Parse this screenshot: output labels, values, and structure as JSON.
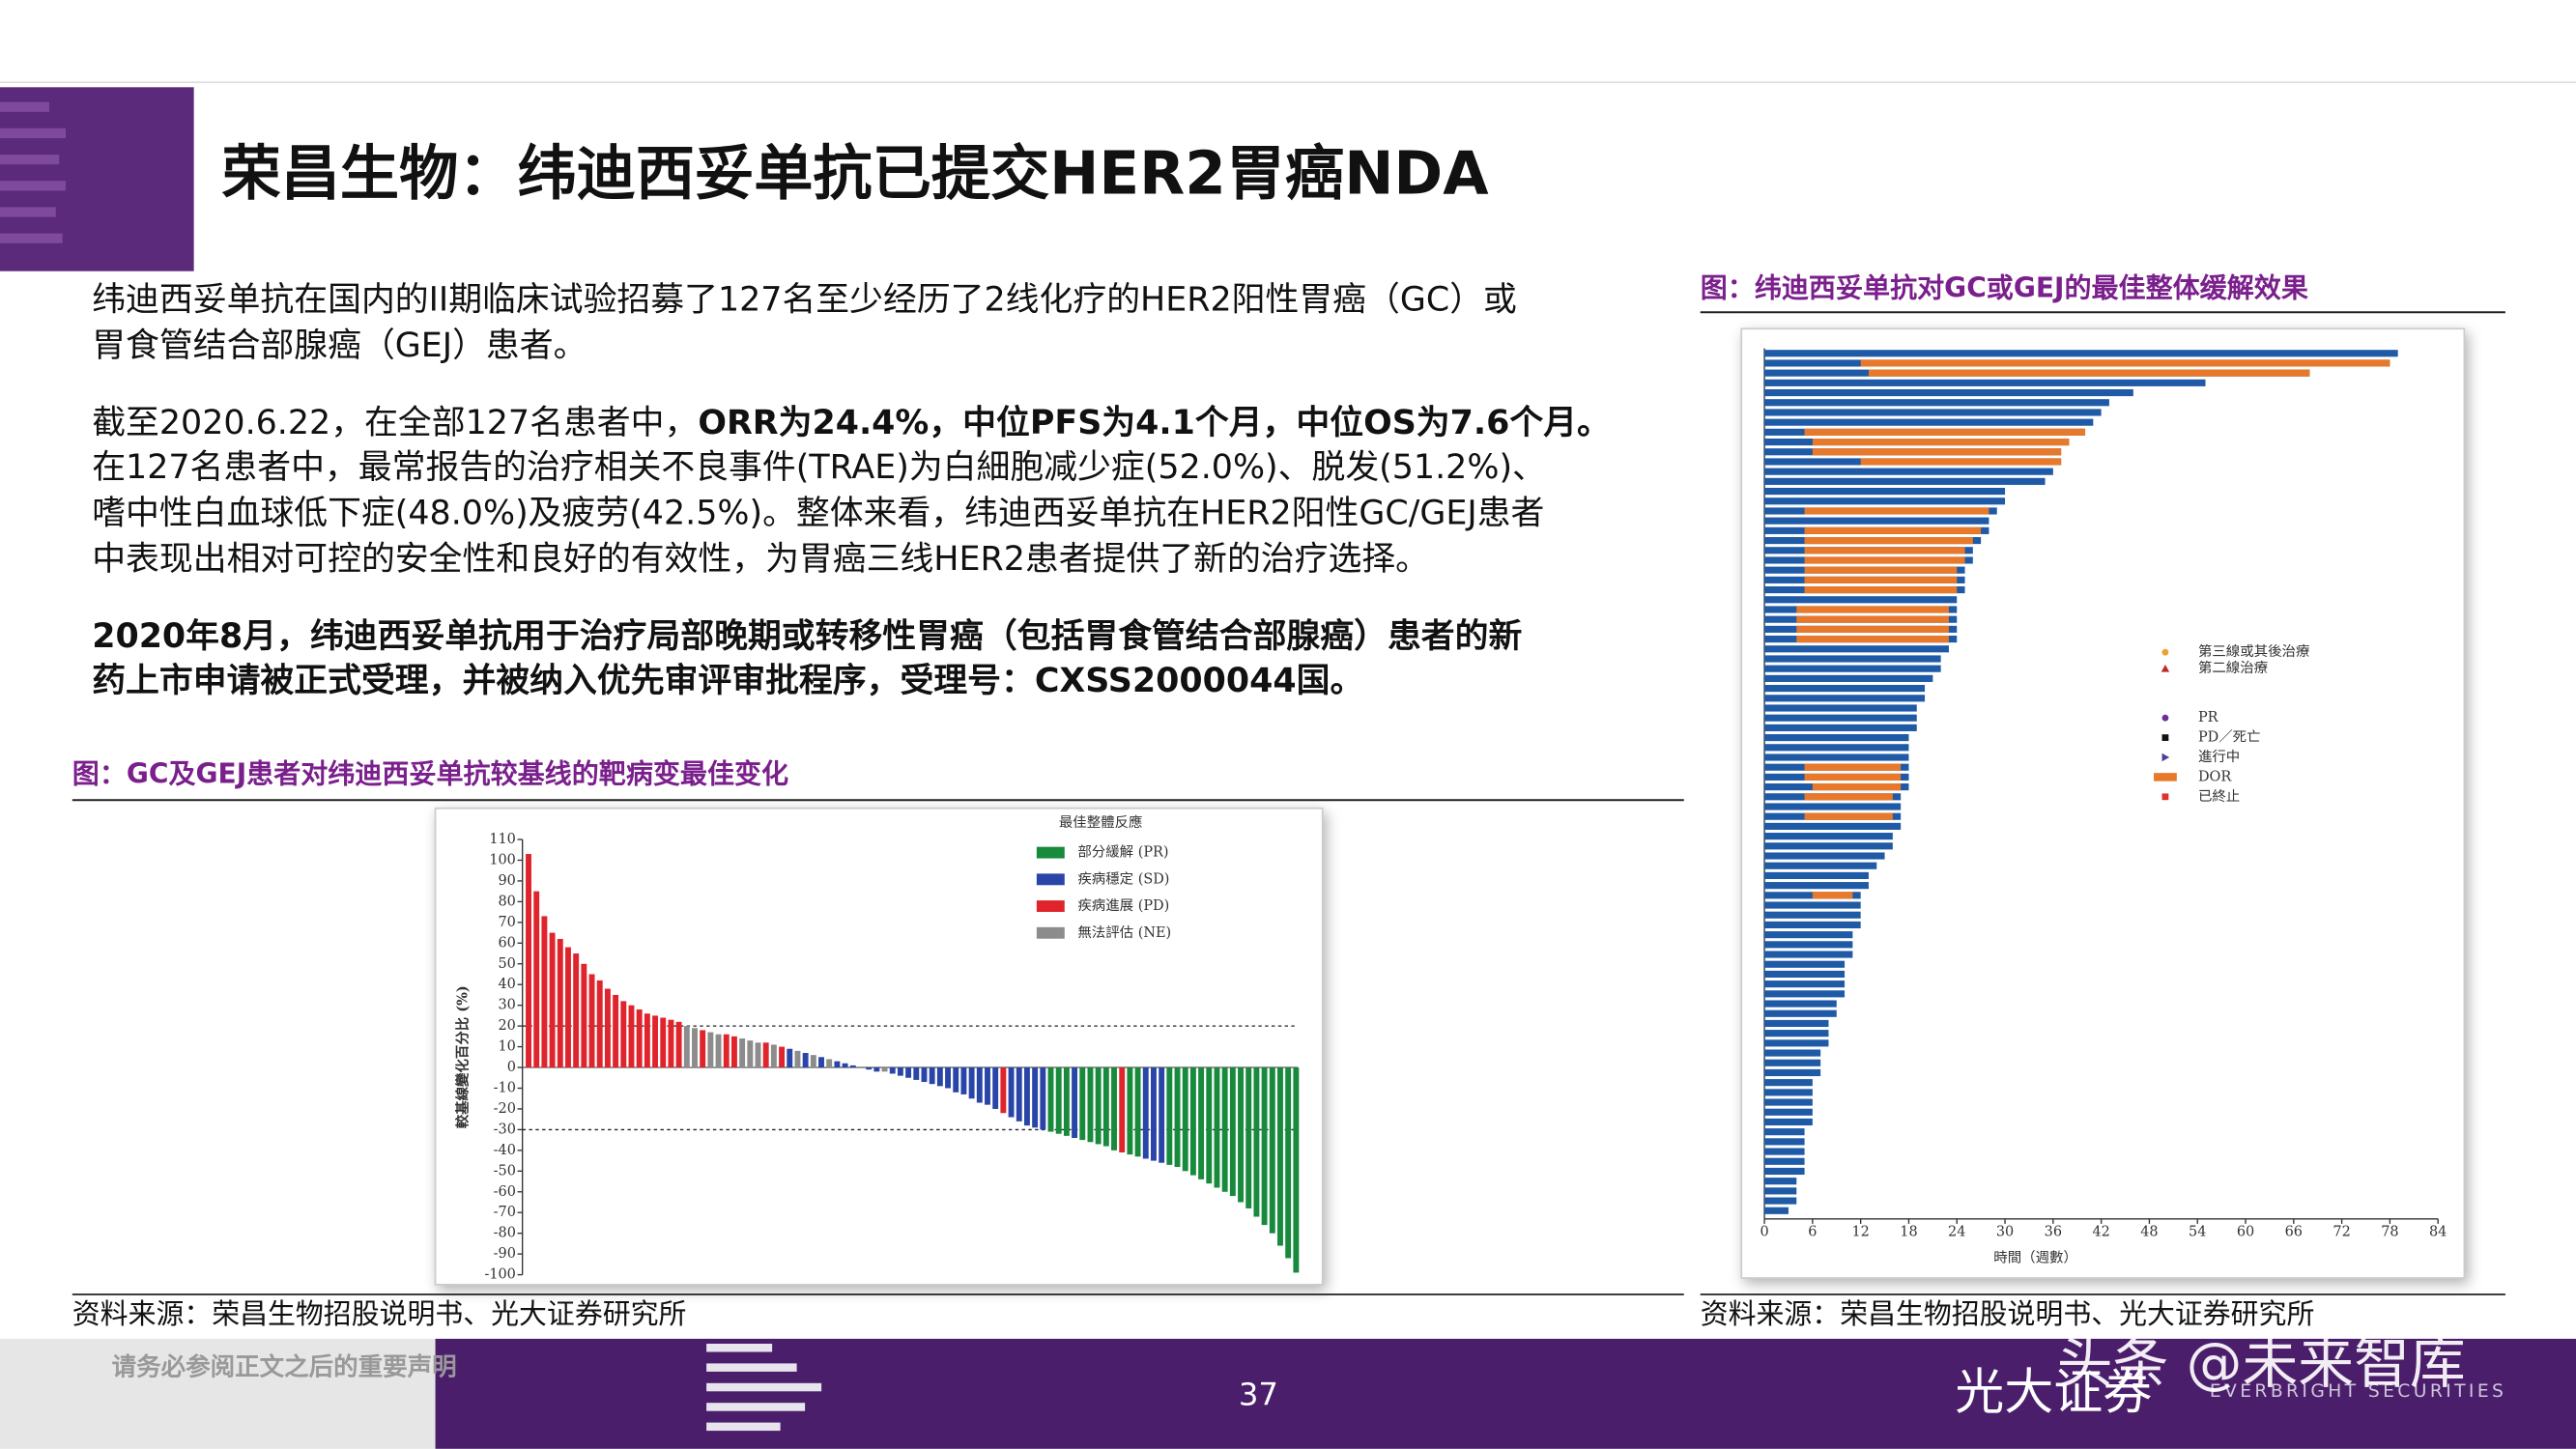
{
  "header": {
    "title": "荣昌生物：纬迪西妥单抗已提交HER2胃癌NDA"
  },
  "body": {
    "p1": [
      "纬迪西妥单抗在国内的II期临床试验招募了127名至少经历了2线化疗的HER2阳性胃癌（GC）或",
      "胃食管结合部腺癌（GEJ）患者。"
    ],
    "p2_first": {
      "normal": "截至2020.6.22，在全部127名患者中，",
      "bold": "ORR为24.4%，中位PFS为4.1个月，中位OS为7.6个月。"
    },
    "p2_rest": [
      "在127名患者中，最常报告的治疗相关不良事件(TRAE)为白細胞减少症(52.0%)、脱发(51.2%)、",
      "嗜中性白血球低下症(48.0%)及疲劳(42.5%)。整体来看，纬迪西妥单抗在HER2阳性GC/GEJ患者",
      "中表现出相对可控的安全性和良好的有效性，为胃癌三线HER2患者提供了新的治疗选择。"
    ],
    "p3": [
      "2020年8月，纬迪西妥单抗用于治疗局部晚期或转移性胃癌（包括胃食管结合部腺癌）患者的新",
      "药上市申请被正式受理，并被纳入优先审评审批程序，受理号：CXSS2000044国。"
    ]
  },
  "chart_data": [
    {
      "type": "waterfall",
      "caption": "图：GC及GEJ患者对纬迪西妥单抗较基线的靶病变最佳变化",
      "ylabel": "較基線變化百分比 (%)",
      "legend_title": "最佳整體反應",
      "legend": [
        {
          "name": "部分緩解 (PR)",
          "color": "#178a3c"
        },
        {
          "name": "疾病穩定 (SD)",
          "color": "#2a45a8"
        },
        {
          "name": "疾病進展 (PD)",
          "color": "#e0242c"
        },
        {
          "name": "無法評估 (NE)",
          "color": "#8c8c8c"
        }
      ],
      "ylim": [
        -100,
        110
      ],
      "yticks": [
        110,
        100,
        90,
        80,
        70,
        60,
        50,
        40,
        30,
        20,
        10,
        0,
        -10,
        -20,
        -30,
        -40,
        -50,
        -60,
        -70,
        -80,
        -90,
        -100
      ],
      "reference_lines": [
        20,
        -30
      ],
      "values": [
        103,
        85,
        73,
        65,
        62,
        58,
        55,
        50,
        45,
        42,
        38,
        35,
        32,
        30,
        28,
        26,
        25,
        24,
        23,
        22,
        20,
        19,
        18,
        17,
        16,
        16,
        15,
        14,
        13,
        12,
        12,
        11,
        10,
        9,
        8,
        7,
        6,
        5,
        4,
        3,
        2,
        1,
        0,
        -1,
        -2,
        -2,
        -3,
        -4,
        -5,
        -6,
        -7,
        -8,
        -9,
        -10,
        -12,
        -13,
        -15,
        -17,
        -18,
        -20,
        -22,
        -24,
        -26,
        -28,
        -29,
        -30,
        -31,
        -32,
        -33,
        -34,
        -35,
        -36,
        -37,
        -38,
        -40,
        -41,
        -42,
        -43,
        -44,
        -45,
        -46,
        -47,
        -48,
        -50,
        -52,
        -54,
        -56,
        -58,
        -60,
        -62,
        -65,
        -68,
        -72,
        -76,
        -80,
        -86,
        -92,
        -99
      ],
      "response": [
        2,
        2,
        2,
        2,
        2,
        2,
        2,
        2,
        2,
        2,
        2,
        2,
        2,
        2,
        2,
        2,
        2,
        2,
        2,
        2,
        3,
        3,
        2,
        3,
        3,
        2,
        2,
        3,
        3,
        3,
        2,
        3,
        2,
        1,
        3,
        1,
        3,
        1,
        3,
        1,
        1,
        1,
        1,
        1,
        1,
        3,
        1,
        1,
        1,
        1,
        1,
        1,
        1,
        1,
        1,
        1,
        1,
        1,
        1,
        1,
        2,
        1,
        1,
        1,
        1,
        1,
        0,
        0,
        0,
        1,
        0,
        0,
        0,
        0,
        0,
        2,
        0,
        0,
        1,
        1,
        1,
        0,
        0,
        0,
        0,
        0,
        0,
        0,
        0,
        0,
        0,
        0,
        0,
        0,
        0,
        0,
        0,
        0
      ]
    },
    {
      "type": "swimmer",
      "caption": "图：纬迪西妥单抗对GC或GEJ的最佳整体缓解效果",
      "xlabel": "時間（週數）",
      "bar_color": "#1f5aa6",
      "xlim": [
        0,
        84
      ],
      "xticks": [
        0,
        6,
        12,
        18,
        24,
        30,
        36,
        42,
        48,
        54,
        60,
        66,
        72,
        78,
        84
      ],
      "legend": [
        {
          "name": "第三線或其後治療",
          "color": "#f0a030",
          "marker": "circle"
        },
        {
          "name": "第二線治療",
          "color": "#c0282c",
          "marker": "triangle"
        },
        {
          "name": "PR",
          "color": "#6a2f9a",
          "marker": "circle"
        },
        {
          "name": "PD／死亡",
          "color": "#111111",
          "marker": "square"
        },
        {
          "name": "進行中",
          "color": "#4a3fa0",
          "marker": "arrow"
        },
        {
          "name": "DOR",
          "color": "#e8782a",
          "marker": "bar"
        },
        {
          "name": "已終止",
          "color": "#e03030",
          "marker": "square"
        }
      ],
      "durations": [
        79,
        78,
        68,
        55,
        46,
        43,
        42,
        41,
        40,
        38,
        37,
        37,
        36,
        35,
        30,
        30,
        29,
        28,
        28,
        27,
        26,
        26,
        25,
        25,
        25,
        24,
        24,
        24,
        24,
        24,
        23,
        22,
        22,
        21,
        20,
        20,
        19,
        19,
        19,
        18,
        18,
        18,
        18,
        18,
        18,
        17,
        17,
        17,
        17,
        16,
        16,
        15,
        14,
        13,
        13,
        12,
        12,
        12,
        12,
        11,
        11,
        11,
        10,
        10,
        10,
        10,
        9,
        9,
        8,
        8,
        8,
        7,
        7,
        7,
        6,
        6,
        6,
        6,
        6,
        5,
        5,
        5,
        5,
        5,
        4,
        4,
        4,
        3
      ],
      "dor": [
        null,
        [
          12,
          78
        ],
        [
          13,
          68
        ],
        null,
        null,
        null,
        null,
        null,
        [
          5,
          40
        ],
        [
          6,
          38
        ],
        [
          6,
          37
        ],
        [
          12,
          37
        ],
        null,
        null,
        null,
        null,
        [
          5,
          28
        ],
        null,
        [
          5,
          27
        ],
        [
          5,
          26
        ],
        [
          5,
          25
        ],
        [
          5,
          25
        ],
        [
          5,
          24
        ],
        [
          5,
          24
        ],
        [
          5,
          24
        ],
        null,
        [
          4,
          23
        ],
        [
          4,
          23
        ],
        [
          4,
          23
        ],
        [
          4,
          23
        ],
        null,
        null,
        null,
        null,
        null,
        null,
        null,
        null,
        null,
        null,
        null,
        null,
        [
          5,
          17
        ],
        [
          5,
          17
        ],
        [
          6,
          17
        ],
        [
          5,
          16
        ],
        null,
        [
          5,
          16
        ],
        null,
        null,
        null,
        null,
        null,
        null,
        null,
        [
          6,
          11
        ],
        null,
        null,
        null,
        null,
        null,
        null,
        null,
        null,
        null,
        null,
        null,
        null,
        null,
        null,
        null,
        null,
        null,
        null,
        null,
        null,
        null,
        null,
        null,
        null,
        null,
        null,
        null,
        null,
        null,
        null,
        null,
        null
      ]
    }
  ],
  "sources": [
    "资料来源：荣昌生物招股说明书、光大证券研究所",
    "资料来源：荣昌生物招股说明书、光大证券研究所"
  ],
  "footer": {
    "disclaimer": "请务必参阅正文之后的重要声明",
    "page": "37",
    "logo": "光大证券",
    "logo_en": "EVERBRIGHT SECURITIES",
    "watermark": "头条 @未来智库"
  }
}
